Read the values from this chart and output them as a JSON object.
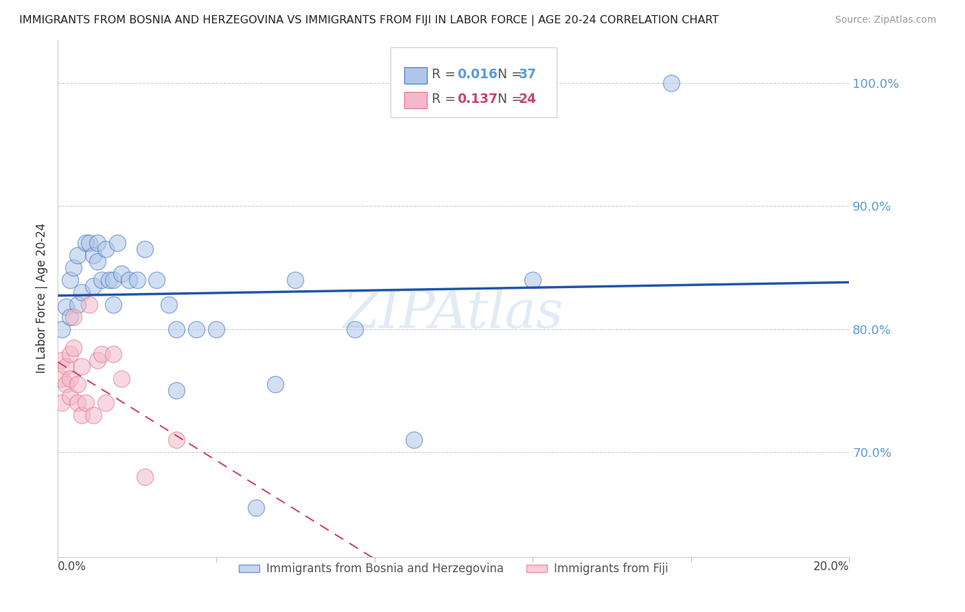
{
  "title": "IMMIGRANTS FROM BOSNIA AND HERZEGOVINA VS IMMIGRANTS FROM FIJI IN LABOR FORCE | AGE 20-24 CORRELATION CHART",
  "source": "Source: ZipAtlas.com",
  "ylabel": "In Labor Force | Age 20-24",
  "ytick_labels": [
    "100.0%",
    "90.0%",
    "80.0%",
    "70.0%"
  ],
  "ytick_values": [
    1.0,
    0.9,
    0.8,
    0.7
  ],
  "xlim": [
    0.0,
    0.2
  ],
  "ylim": [
    0.615,
    1.035
  ],
  "legend1_label": "Immigrants from Bosnia and Herzegovina",
  "legend2_label": "Immigrants from Fiji",
  "R_bosnia": 0.016,
  "N_bosnia": 37,
  "R_fiji": 0.137,
  "N_fiji": 24,
  "watermark": "ZIPAtlas",
  "blue_fill": "#aec6e8",
  "pink_fill": "#f4b8c8",
  "blue_edge": "#4472c4",
  "pink_edge": "#e07090",
  "line_blue": "#2255aa",
  "line_pink": "#cc4466",
  "axis_label_color": "#5b9bd5",
  "bosnia_x": [
    0.001,
    0.002,
    0.003,
    0.003,
    0.004,
    0.005,
    0.005,
    0.006,
    0.007,
    0.008,
    0.009,
    0.009,
    0.01,
    0.01,
    0.011,
    0.012,
    0.013,
    0.014,
    0.014,
    0.015,
    0.016,
    0.018,
    0.02,
    0.022,
    0.025,
    0.028,
    0.03,
    0.035,
    0.04,
    0.055,
    0.06,
    0.075,
    0.09,
    0.12,
    0.155,
    0.03,
    0.05
  ],
  "bosnia_y": [
    0.8,
    0.818,
    0.81,
    0.84,
    0.85,
    0.86,
    0.82,
    0.83,
    0.87,
    0.87,
    0.86,
    0.835,
    0.87,
    0.855,
    0.84,
    0.865,
    0.84,
    0.84,
    0.82,
    0.87,
    0.845,
    0.84,
    0.84,
    0.865,
    0.84,
    0.82,
    0.8,
    0.8,
    0.8,
    0.755,
    0.84,
    0.8,
    0.71,
    0.84,
    1.0,
    0.75,
    0.655
  ],
  "fiji_x": [
    0.001,
    0.001,
    0.001,
    0.002,
    0.002,
    0.003,
    0.003,
    0.003,
    0.004,
    0.004,
    0.005,
    0.005,
    0.006,
    0.006,
    0.007,
    0.008,
    0.009,
    0.01,
    0.011,
    0.012,
    0.014,
    0.016,
    0.022,
    0.03
  ],
  "fiji_y": [
    0.74,
    0.76,
    0.775,
    0.755,
    0.77,
    0.78,
    0.76,
    0.745,
    0.785,
    0.81,
    0.755,
    0.74,
    0.73,
    0.77,
    0.74,
    0.82,
    0.73,
    0.775,
    0.78,
    0.74,
    0.78,
    0.76,
    0.68,
    0.71
  ],
  "bosnia_intercept": 0.8165,
  "bosnia_slope": 0.012,
  "fiji_intercept": 0.75,
  "fiji_slope": 1.35
}
